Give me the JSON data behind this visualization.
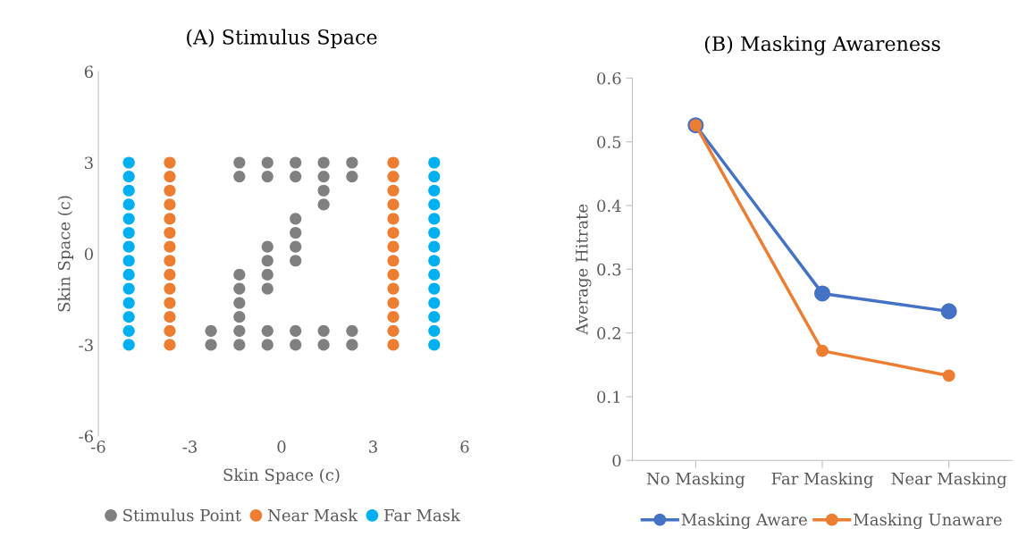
{
  "chart_data": [
    {
      "type": "scatter",
      "title": "(A) Stimulus Space",
      "xlabel": "Skin Space (c)",
      "ylabel": "Skin Space (c)",
      "xlim": [
        -6,
        6
      ],
      "xticks": [
        -6,
        -3,
        0,
        3,
        6
      ],
      "ylim": [
        -6,
        6
      ],
      "yticks": [
        -6,
        -3,
        0,
        3,
        6
      ],
      "grid": false,
      "legend": "bottom",
      "marker": "circle",
      "series": [
        {
          "name": "Stimulus Point",
          "color": "#808080",
          "x": [
            -1.38,
            -0.46,
            0.46,
            1.38,
            2.31,
            -1.38,
            -0.46,
            0.46,
            1.38,
            2.31,
            1.38,
            1.38,
            0.46,
            0.46,
            -0.46,
            0.46,
            -0.46,
            0.46,
            -1.38,
            -0.46,
            -1.38,
            -0.46,
            -1.38,
            -1.38,
            -2.31,
            -1.38,
            -0.46,
            0.46,
            1.38,
            2.31,
            -2.31,
            -1.38,
            -0.46,
            0.46,
            1.38,
            2.31
          ],
          "values": [
            3,
            3,
            3,
            3,
            3,
            2.54,
            2.54,
            2.54,
            2.54,
            2.54,
            2.08,
            1.62,
            1.15,
            0.69,
            0.23,
            0.23,
            -0.23,
            -0.23,
            -0.69,
            -0.69,
            -1.15,
            -1.15,
            -1.62,
            -2.08,
            -2.54,
            -2.54,
            -2.54,
            -2.54,
            -2.54,
            -2.54,
            -3,
            -3,
            -3,
            -3,
            -3,
            -3
          ]
        },
        {
          "name": "Near Mask",
          "color": "#ed7d31",
          "x": [
            -3.66,
            -3.66,
            -3.66,
            -3.66,
            -3.66,
            -3.66,
            -3.66,
            -3.66,
            -3.66,
            -3.66,
            -3.66,
            -3.66,
            -3.66,
            -3.66,
            3.66,
            3.66,
            3.66,
            3.66,
            3.66,
            3.66,
            3.66,
            3.66,
            3.66,
            3.66,
            3.66,
            3.66,
            3.66,
            3.66
          ],
          "values": [
            3,
            2.54,
            2.08,
            1.62,
            1.15,
            0.69,
            0.23,
            -0.23,
            -0.69,
            -1.15,
            -1.62,
            -2.08,
            -2.54,
            -3,
            3,
            2.54,
            2.08,
            1.62,
            1.15,
            0.69,
            0.23,
            -0.23,
            -0.69,
            -1.15,
            -1.62,
            -2.08,
            -2.54,
            -3
          ]
        },
        {
          "name": "Far Mask",
          "color": "#00b0f0",
          "x": [
            -5,
            -5,
            -5,
            -5,
            -5,
            -5,
            -5,
            -5,
            -5,
            -5,
            -5,
            -5,
            -5,
            -5,
            5,
            5,
            5,
            5,
            5,
            5,
            5,
            5,
            5,
            5,
            5,
            5,
            5,
            5
          ],
          "values": [
            3,
            2.54,
            2.08,
            1.62,
            1.15,
            0.69,
            0.23,
            -0.23,
            -0.69,
            -1.15,
            -1.62,
            -2.08,
            -2.54,
            -3,
            3,
            2.54,
            2.08,
            1.62,
            1.15,
            0.69,
            0.23,
            -0.23,
            -0.69,
            -1.15,
            -1.62,
            -2.08,
            -2.54,
            -3
          ]
        }
      ]
    },
    {
      "type": "line",
      "title": "(B) Masking Awareness",
      "ylabel": "Average Hitrate",
      "categories": [
        "No Masking",
        "Far Masking",
        "Near Masking"
      ],
      "ylim": [
        0,
        0.6
      ],
      "yticks": [
        0,
        0.1,
        0.2,
        0.3,
        0.4,
        0.5,
        0.6
      ],
      "grid": false,
      "legend": "bottom",
      "marker": "circle",
      "line_style": "solid",
      "series": [
        {
          "name": "Masking Aware",
          "color": "#4472c4",
          "values": [
            0.526,
            0.262,
            0.234
          ]
        },
        {
          "name": "Masking Unaware",
          "color": "#ed7d31",
          "values": [
            0.526,
            0.172,
            0.133
          ]
        }
      ]
    }
  ]
}
